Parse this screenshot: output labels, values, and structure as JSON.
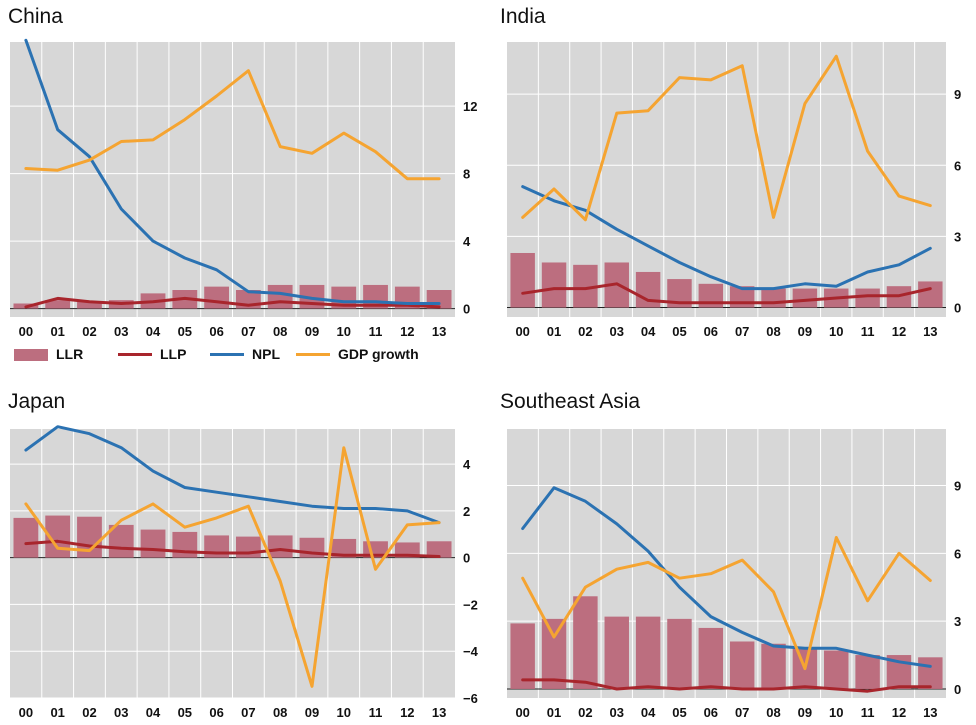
{
  "colors": {
    "llr": "#bc6e7f",
    "llp": "#a8252c",
    "npl": "#2b72b2",
    "gdp": "#f5a431",
    "plot_bg": "#d7d7d7",
    "grid": "#ffffff"
  },
  "legend": [
    {
      "key": "llr",
      "label": "LLR",
      "shape": "bar"
    },
    {
      "key": "llp",
      "label": "LLP",
      "shape": "line"
    },
    {
      "key": "npl",
      "label": "NPL",
      "shape": "line"
    },
    {
      "key": "gdp",
      "label": "GDP growth",
      "shape": "line"
    }
  ],
  "chart_data": [
    {
      "title": "China",
      "type": "bar+line",
      "categories": [
        "00",
        "01",
        "02",
        "03",
        "04",
        "05",
        "06",
        "07",
        "08",
        "09",
        "10",
        "11",
        "12",
        "13"
      ],
      "ylim": [
        -0.5,
        15.8
      ],
      "yticks": [
        0,
        4,
        8,
        12
      ],
      "ytick_labels": [
        "0",
        "4",
        "8",
        "12"
      ],
      "grid": true,
      "series": [
        {
          "name": "LLR",
          "type": "bar",
          "values": [
            0.3,
            0.5,
            0.4,
            0.5,
            0.9,
            1.1,
            1.3,
            1.1,
            1.4,
            1.4,
            1.3,
            1.4,
            1.3,
            1.1
          ]
        },
        {
          "name": "LLP",
          "type": "line",
          "values": [
            0.1,
            0.6,
            0.4,
            0.3,
            0.4,
            0.6,
            0.4,
            0.2,
            0.4,
            0.3,
            0.2,
            0.2,
            0.2,
            0.1
          ]
        },
        {
          "name": "NPL",
          "type": "line",
          "values": [
            15.9,
            10.6,
            9.0,
            5.9,
            4.0,
            3.0,
            2.3,
            1.0,
            0.9,
            0.6,
            0.4,
            0.4,
            0.3,
            0.3
          ]
        },
        {
          "name": "GDP growth",
          "type": "line",
          "values": [
            8.3,
            8.2,
            8.8,
            9.9,
            10.0,
            11.2,
            12.6,
            14.1,
            9.6,
            9.2,
            10.4,
            9.3,
            7.7,
            7.7
          ]
        }
      ]
    },
    {
      "title": "India",
      "type": "bar+line",
      "categories": [
        "00",
        "01",
        "02",
        "03",
        "04",
        "05",
        "06",
        "07",
        "08",
        "09",
        "10",
        "11",
        "12",
        "13"
      ],
      "ylim": [
        -0.4,
        11.2
      ],
      "yticks": [
        0,
        3,
        6,
        9
      ],
      "ytick_labels": [
        "0",
        "3",
        "6",
        "9"
      ],
      "grid": true,
      "series": [
        {
          "name": "LLR",
          "type": "bar",
          "values": [
            2.3,
            1.9,
            1.8,
            1.9,
            1.5,
            1.2,
            1.0,
            0.9,
            0.8,
            0.8,
            0.8,
            0.8,
            0.9,
            1.1
          ]
        },
        {
          "name": "LLP",
          "type": "line",
          "values": [
            0.6,
            0.8,
            0.8,
            1.0,
            0.3,
            0.2,
            0.2,
            0.2,
            0.2,
            0.3,
            0.4,
            0.5,
            0.5,
            0.8
          ]
        },
        {
          "name": "NPL",
          "type": "line",
          "values": [
            5.1,
            4.5,
            4.1,
            3.3,
            2.6,
            1.9,
            1.3,
            0.8,
            0.8,
            1.0,
            0.9,
            1.5,
            1.8,
            2.5
          ]
        },
        {
          "name": "GDP growth",
          "type": "line",
          "values": [
            3.8,
            5.0,
            3.7,
            8.2,
            8.3,
            9.7,
            9.6,
            10.2,
            3.8,
            8.6,
            10.6,
            6.6,
            4.7,
            4.3
          ]
        }
      ]
    },
    {
      "title": "Japan",
      "type": "bar+line",
      "categories": [
        "00",
        "01",
        "02",
        "03",
        "04",
        "05",
        "06",
        "07",
        "08",
        "09",
        "10",
        "11",
        "12",
        "13"
      ],
      "ylim": [
        -6.0,
        5.5
      ],
      "yticks": [
        -6,
        -4,
        -2,
        0,
        2,
        4
      ],
      "ytick_labels": [
        "−6",
        "−4",
        "−2",
        "0",
        "2",
        "4"
      ],
      "grid": true,
      "series": [
        {
          "name": "LLR",
          "type": "bar",
          "values": [
            1.7,
            1.8,
            1.75,
            1.4,
            1.2,
            1.1,
            0.95,
            0.9,
            0.95,
            0.85,
            0.8,
            0.7,
            0.65,
            0.7
          ]
        },
        {
          "name": "LLP",
          "type": "line",
          "values": [
            0.6,
            0.7,
            0.5,
            0.4,
            0.35,
            0.25,
            0.2,
            0.2,
            0.35,
            0.2,
            0.1,
            0.1,
            0.1,
            0.05
          ]
        },
        {
          "name": "NPL",
          "type": "line",
          "values": [
            4.6,
            5.6,
            5.3,
            4.7,
            3.7,
            3.0,
            2.8,
            2.6,
            2.4,
            2.2,
            2.1,
            2.1,
            2.0,
            1.5
          ]
        },
        {
          "name": "GDP growth",
          "type": "line",
          "values": [
            2.3,
            0.4,
            0.3,
            1.6,
            2.3,
            1.3,
            1.7,
            2.2,
            -1.0,
            -5.5,
            4.7,
            -0.5,
            1.4,
            1.5
          ]
        }
      ]
    },
    {
      "title": "Southeast Asia",
      "type": "bar+line",
      "categories": [
        "00",
        "01",
        "02",
        "03",
        "04",
        "05",
        "06",
        "07",
        "08",
        "09",
        "10",
        "11",
        "12",
        "13"
      ],
      "ylim": [
        -0.4,
        11.5
      ],
      "yticks": [
        0,
        3,
        6,
        9
      ],
      "ytick_labels": [
        "0",
        "3",
        "6",
        "9"
      ],
      "grid": true,
      "series": [
        {
          "name": "LLR",
          "type": "bar",
          "values": [
            2.9,
            3.1,
            4.1,
            3.2,
            3.2,
            3.1,
            2.7,
            2.1,
            2.0,
            1.8,
            1.7,
            1.5,
            1.5,
            1.4
          ]
        },
        {
          "name": "LLP",
          "type": "line",
          "values": [
            0.4,
            0.4,
            0.3,
            0.0,
            0.1,
            0.0,
            0.1,
            0.0,
            0.0,
            0.1,
            0.0,
            -0.1,
            0.1,
            0.1
          ]
        },
        {
          "name": "NPL",
          "type": "line",
          "values": [
            7.1,
            8.9,
            8.3,
            7.3,
            6.1,
            4.5,
            3.2,
            2.5,
            1.9,
            1.8,
            1.8,
            1.5,
            1.2,
            1.0
          ]
        },
        {
          "name": "GDP growth",
          "type": "line",
          "values": [
            4.9,
            2.3,
            4.5,
            5.3,
            5.6,
            4.9,
            5.1,
            5.7,
            4.3,
            0.9,
            6.7,
            3.9,
            6.0,
            4.8
          ]
        }
      ]
    }
  ]
}
